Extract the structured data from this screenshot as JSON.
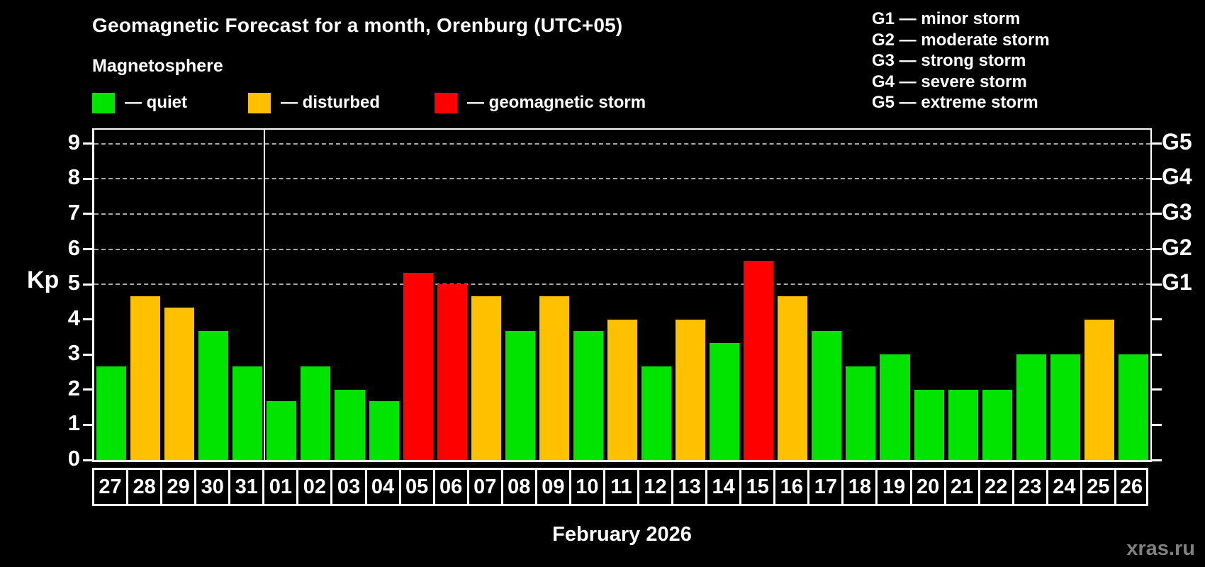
{
  "header": {
    "title": "Geomagnetic Forecast for a month, Orenburg (UTC+05)",
    "subtitle": "Magnetosphere"
  },
  "legend": {
    "items": [
      {
        "key": "quiet",
        "label": "— quiet"
      },
      {
        "key": "disturbed",
        "label": "— disturbed"
      },
      {
        "key": "storm",
        "label": "— geomagnetic storm"
      }
    ]
  },
  "storm_scale": {
    "items": [
      "G1 — minor storm",
      "G2 — moderate storm",
      "G3 — strong storm",
      "G4 — severe storm",
      "G5 — extreme storm"
    ]
  },
  "colors": {
    "quiet": "#00e400",
    "disturbed": "#ffc000",
    "storm": "#ff0000",
    "background": "#000000",
    "grid": "#a9a9a9",
    "axis": "#ffffff",
    "watermark": "#808080"
  },
  "chart_data": {
    "type": "bar",
    "title": "Geomagnetic Forecast for a month, Orenburg (UTC+05)",
    "ylabel": "Kp",
    "xlabel": "February 2026",
    "ylim": [
      0,
      9.4
    ],
    "yticks": [
      0,
      1,
      2,
      3,
      4,
      5,
      6,
      7,
      8,
      9
    ],
    "gridlines_at": [
      5,
      6,
      7,
      8,
      9
    ],
    "grid": "dashed",
    "legend_position": "top",
    "right_axis": [
      {
        "kp": 5,
        "label": "G1"
      },
      {
        "kp": 6,
        "label": "G2"
      },
      {
        "kp": 7,
        "label": "G3"
      },
      {
        "kp": 8,
        "label": "G4"
      },
      {
        "kp": 9,
        "label": "G5"
      }
    ],
    "month_start_label": "01",
    "categories": [
      "27",
      "28",
      "29",
      "30",
      "31",
      "01",
      "02",
      "03",
      "04",
      "05",
      "06",
      "07",
      "08",
      "09",
      "10",
      "11",
      "12",
      "13",
      "14",
      "15",
      "16",
      "17",
      "18",
      "19",
      "20",
      "21",
      "22",
      "23",
      "24",
      "25",
      "26"
    ],
    "values": [
      2.67,
      4.67,
      4.33,
      3.67,
      2.67,
      1.67,
      2.67,
      2.0,
      1.67,
      5.33,
      5.0,
      4.67,
      3.67,
      4.67,
      3.67,
      4.0,
      2.67,
      4.0,
      3.33,
      5.67,
      4.67,
      3.67,
      2.67,
      3.0,
      2.0,
      2.0,
      2.0,
      3.0,
      3.0,
      4.0,
      3.0
    ],
    "statuses": [
      "quiet",
      "disturbed",
      "disturbed",
      "quiet",
      "quiet",
      "quiet",
      "quiet",
      "quiet",
      "quiet",
      "storm",
      "storm",
      "disturbed",
      "quiet",
      "disturbed",
      "quiet",
      "disturbed",
      "quiet",
      "disturbed",
      "quiet",
      "storm",
      "disturbed",
      "quiet",
      "quiet",
      "quiet",
      "quiet",
      "quiet",
      "quiet",
      "quiet",
      "quiet",
      "disturbed",
      "quiet"
    ]
  },
  "footer": {
    "month_label": "February 2026",
    "watermark": "xras.ru"
  }
}
